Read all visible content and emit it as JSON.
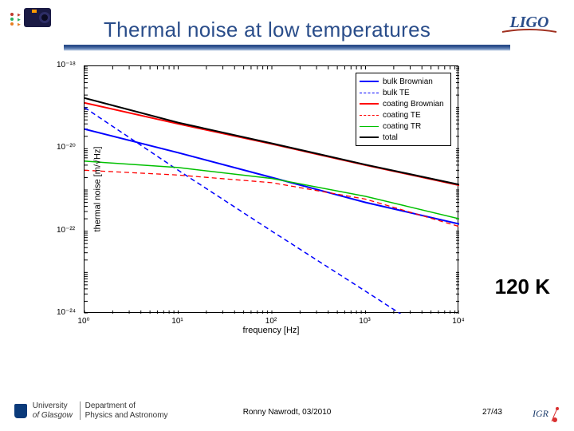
{
  "header": {
    "title": "Thermal noise at low temperatures",
    "logo_left_caption": "camera-icon",
    "logo_right_text": "LIGO"
  },
  "temperature_label": "120 K",
  "footer": {
    "institution_line1": "University",
    "institution_line2": "of Glasgow",
    "department_line1": "Department of",
    "department_line2": "Physics and Astronomy",
    "center": "Ronny Nawrodt, 03/2010",
    "page": "27/43",
    "igr": "IGR"
  },
  "chart": {
    "type": "line",
    "xlabel": "frequency [Hz]",
    "ylabel": "thermal noise [m/√Hz]",
    "xscale": "log",
    "yscale": "log",
    "xlim": [
      1,
      10000
    ],
    "ylim": [
      1e-24,
      1e-18
    ],
    "xticks": [
      1,
      10,
      100,
      1000,
      10000
    ],
    "xtick_labels": [
      "10⁰",
      "10¹",
      "10²",
      "10³",
      "10⁴"
    ],
    "yticks": [
      1e-24,
      1e-22,
      1e-20,
      1e-18
    ],
    "ytick_labels": [
      "10⁻²⁴",
      "10⁻²²",
      "10⁻²⁰",
      "10⁻¹⁸"
    ],
    "background_color": "#ffffff",
    "axis_color": "#000000",
    "minor_ticks": true,
    "series": [
      {
        "name": "bulk Brownian",
        "color": "#0000ff",
        "dash": "solid",
        "width": 2,
        "points": [
          [
            1,
            3e-20
          ],
          [
            10,
            8e-21
          ],
          [
            100,
            2e-21
          ],
          [
            1000,
            5e-22
          ],
          [
            10000,
            1.5e-22
          ]
        ]
      },
      {
        "name": "bulk TE",
        "color": "#0000ff",
        "dash": "dashed",
        "width": 1.5,
        "points": [
          [
            1,
            1e-19
          ],
          [
            10,
            3e-21
          ],
          [
            100,
            1e-22
          ],
          [
            1000,
            3.5e-24
          ],
          [
            10000,
            1.2e-25
          ]
        ]
      },
      {
        "name": "coating Brownian",
        "color": "#ff0000",
        "dash": "solid",
        "width": 2,
        "points": [
          [
            1,
            1.3e-19
          ],
          [
            10,
            4e-20
          ],
          [
            100,
            1.3e-20
          ],
          [
            1000,
            4e-21
          ],
          [
            10000,
            1.3e-21
          ]
        ]
      },
      {
        "name": "coating TE",
        "color": "#ff0000",
        "dash": "dashed",
        "width": 1.3,
        "points": [
          [
            1,
            3e-21
          ],
          [
            10,
            2.3e-21
          ],
          [
            100,
            1.5e-21
          ],
          [
            1000,
            6e-22
          ],
          [
            10000,
            1.3e-22
          ]
        ]
      },
      {
        "name": "coating TR",
        "color": "#00c000",
        "dash": "solid",
        "width": 1.5,
        "points": [
          [
            1,
            5e-21
          ],
          [
            10,
            3.5e-21
          ],
          [
            100,
            1.9e-21
          ],
          [
            1000,
            7e-22
          ],
          [
            10000,
            2e-22
          ]
        ]
      },
      {
        "name": "total",
        "color": "#000000",
        "dash": "solid",
        "width": 2,
        "points": [
          [
            1,
            1.7e-19
          ],
          [
            10,
            4.3e-20
          ],
          [
            100,
            1.35e-20
          ],
          [
            1000,
            4.1e-21
          ],
          [
            10000,
            1.35e-21
          ]
        ]
      }
    ],
    "legend_position": "upper right",
    "label_fontsize": 11,
    "tick_fontsize": 10
  }
}
